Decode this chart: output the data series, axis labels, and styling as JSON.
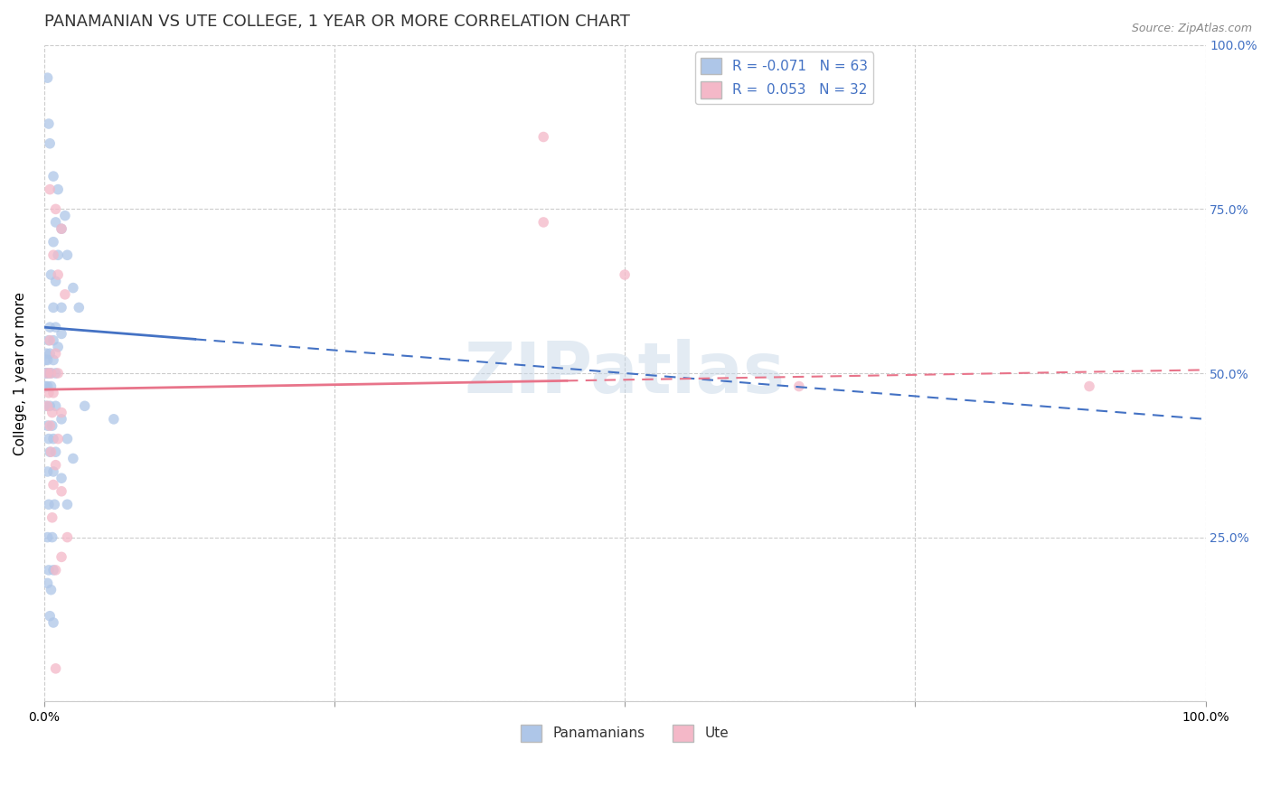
{
  "title": "PANAMANIAN VS UTE COLLEGE, 1 YEAR OR MORE CORRELATION CHART",
  "source": "Source: ZipAtlas.com",
  "ylabel": "College, 1 year or more",
  "xlim": [
    0.0,
    1.0
  ],
  "ylim": [
    0.0,
    1.0
  ],
  "legend_entries": [
    {
      "label": "R = -0.071   N = 63",
      "color": "#aec6e8"
    },
    {
      "label": "R =  0.053   N = 32",
      "color": "#f4b8c8"
    }
  ],
  "bottom_legend": [
    {
      "label": "Panamanians",
      "color": "#aec6e8"
    },
    {
      "label": "Ute",
      "color": "#f4b8c8"
    }
  ],
  "watermark": "ZIPatlas",
  "blue_scatter": [
    [
      0.003,
      0.95
    ],
    [
      0.004,
      0.88
    ],
    [
      0.005,
      0.85
    ],
    [
      0.008,
      0.8
    ],
    [
      0.012,
      0.78
    ],
    [
      0.01,
      0.73
    ],
    [
      0.015,
      0.72
    ],
    [
      0.018,
      0.74
    ],
    [
      0.008,
      0.7
    ],
    [
      0.012,
      0.68
    ],
    [
      0.02,
      0.68
    ],
    [
      0.006,
      0.65
    ],
    [
      0.01,
      0.64
    ],
    [
      0.025,
      0.63
    ],
    [
      0.008,
      0.6
    ],
    [
      0.015,
      0.6
    ],
    [
      0.03,
      0.6
    ],
    [
      0.005,
      0.57
    ],
    [
      0.01,
      0.57
    ],
    [
      0.004,
      0.55
    ],
    [
      0.008,
      0.55
    ],
    [
      0.015,
      0.56
    ],
    [
      0.002,
      0.53
    ],
    [
      0.005,
      0.53
    ],
    [
      0.012,
      0.54
    ],
    [
      0.001,
      0.52
    ],
    [
      0.003,
      0.52
    ],
    [
      0.008,
      0.52
    ],
    [
      0.001,
      0.5
    ],
    [
      0.002,
      0.5
    ],
    [
      0.004,
      0.5
    ],
    [
      0.006,
      0.5
    ],
    [
      0.01,
      0.5
    ],
    [
      0.001,
      0.48
    ],
    [
      0.003,
      0.48
    ],
    [
      0.006,
      0.48
    ],
    [
      0.002,
      0.45
    ],
    [
      0.005,
      0.45
    ],
    [
      0.01,
      0.45
    ],
    [
      0.003,
      0.42
    ],
    [
      0.007,
      0.42
    ],
    [
      0.015,
      0.43
    ],
    [
      0.004,
      0.4
    ],
    [
      0.008,
      0.4
    ],
    [
      0.02,
      0.4
    ],
    [
      0.005,
      0.38
    ],
    [
      0.01,
      0.38
    ],
    [
      0.025,
      0.37
    ],
    [
      0.003,
      0.35
    ],
    [
      0.008,
      0.35
    ],
    [
      0.015,
      0.34
    ],
    [
      0.004,
      0.3
    ],
    [
      0.009,
      0.3
    ],
    [
      0.02,
      0.3
    ],
    [
      0.003,
      0.25
    ],
    [
      0.007,
      0.25
    ],
    [
      0.004,
      0.2
    ],
    [
      0.008,
      0.2
    ],
    [
      0.003,
      0.18
    ],
    [
      0.006,
      0.17
    ],
    [
      0.005,
      0.13
    ],
    [
      0.008,
      0.12
    ],
    [
      0.035,
      0.45
    ],
    [
      0.06,
      0.43
    ]
  ],
  "pink_scatter": [
    [
      0.005,
      0.78
    ],
    [
      0.01,
      0.75
    ],
    [
      0.015,
      0.72
    ],
    [
      0.008,
      0.68
    ],
    [
      0.012,
      0.65
    ],
    [
      0.018,
      0.62
    ],
    [
      0.005,
      0.55
    ],
    [
      0.01,
      0.53
    ],
    [
      0.003,
      0.5
    ],
    [
      0.006,
      0.5
    ],
    [
      0.012,
      0.5
    ],
    [
      0.004,
      0.47
    ],
    [
      0.008,
      0.47
    ],
    [
      0.003,
      0.45
    ],
    [
      0.007,
      0.44
    ],
    [
      0.015,
      0.44
    ],
    [
      0.005,
      0.42
    ],
    [
      0.012,
      0.4
    ],
    [
      0.006,
      0.38
    ],
    [
      0.01,
      0.36
    ],
    [
      0.008,
      0.33
    ],
    [
      0.015,
      0.32
    ],
    [
      0.007,
      0.28
    ],
    [
      0.02,
      0.25
    ],
    [
      0.015,
      0.22
    ],
    [
      0.01,
      0.2
    ],
    [
      0.01,
      0.05
    ],
    [
      0.43,
      0.86
    ],
    [
      0.43,
      0.73
    ],
    [
      0.5,
      0.65
    ],
    [
      0.65,
      0.48
    ],
    [
      0.9,
      0.48
    ]
  ],
  "blue_line_color": "#4472c4",
  "pink_line_color": "#e8748a",
  "scatter_blue_color": "#aec6e8",
  "scatter_pink_color": "#f4b8c8",
  "scatter_alpha": 0.75,
  "scatter_size": 70,
  "title_fontsize": 13,
  "axis_label_fontsize": 11,
  "tick_fontsize": 10,
  "legend_fontsize": 11,
  "background_color": "#ffffff",
  "grid_color": "#cccccc",
  "right_tick_color": "#4472c4",
  "blue_line_y0": 0.57,
  "blue_line_y1": 0.43,
  "pink_line_y0": 0.475,
  "pink_line_y1": 0.505
}
